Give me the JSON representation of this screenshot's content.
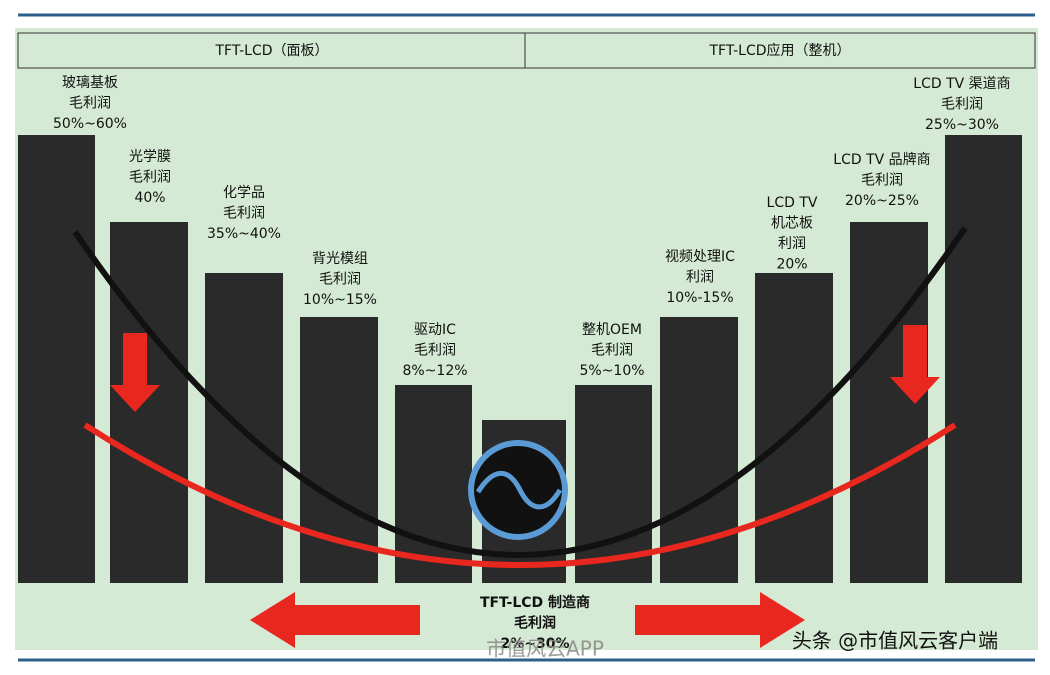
{
  "header": {
    "left": "TFT-LCD（面板）",
    "right": "TFT-LCD应用（整机）"
  },
  "bars": [
    {
      "lines": [
        "玻璃基板",
        "毛利润",
        "50%~60%"
      ]
    },
    {
      "lines": [
        "光学膜",
        "毛利润",
        "40%"
      ]
    },
    {
      "lines": [
        "化学品",
        "毛利润",
        "35%~40%"
      ]
    },
    {
      "lines": [
        "背光模组",
        "毛利润",
        "10%~15%"
      ]
    },
    {
      "lines": [
        "驱动IC",
        "毛利润",
        "8%~12%"
      ]
    },
    {
      "lines": [
        "TFT-LCD 制造商",
        "毛利润",
        "2%~30%"
      ]
    },
    {
      "lines": [
        "整机OEM",
        "毛利润",
        "5%~10%"
      ]
    },
    {
      "lines": [
        "视频处理IC",
        "利润",
        "10%-15%"
      ]
    },
    {
      "lines": [
        "LCD TV",
        "机芯板",
        "利润",
        "20%"
      ]
    },
    {
      "lines": [
        "LCD TV 品牌商",
        "毛利润",
        "20%~25%"
      ]
    },
    {
      "lines": [
        "LCD TV 渠道商",
        "毛利润",
        "25%~30%"
      ]
    }
  ],
  "watermarks": {
    "weibo": "市值风云APP",
    "toutiao": "头条 @市值风云客户端"
  }
}
